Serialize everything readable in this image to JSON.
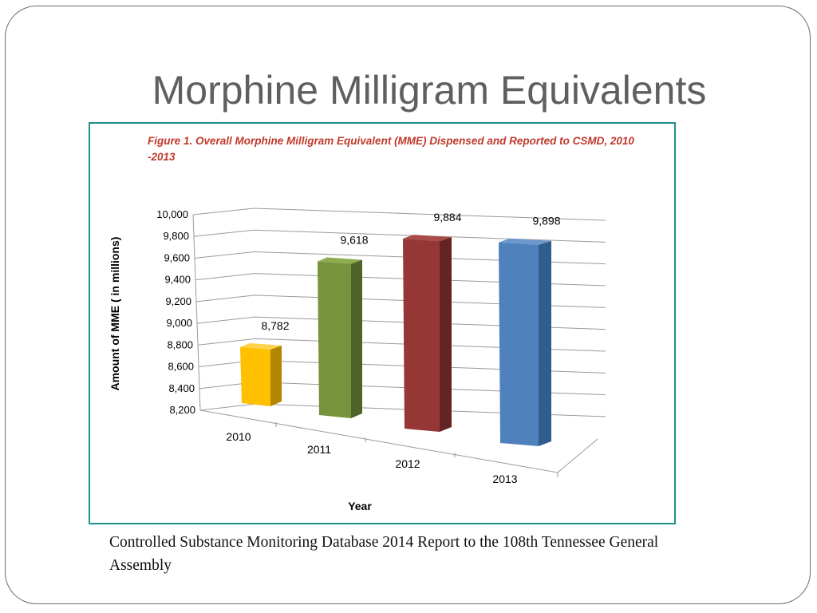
{
  "slide": {
    "title": "Morphine Milligram Equivalents",
    "caption": "Controlled Substance Monitoring Database 2014 Report to the 108th Tennessee General Assembly"
  },
  "chart_data": {
    "type": "bar",
    "title": "Figure 1. Overall Morphine Milligram Equivalent (MME) Dispensed  and Reported to CSMD, 2010 -2013",
    "xlabel": "Year",
    "ylabel": "Amount of MME ( in millions)",
    "categories": [
      "2010",
      "2011",
      "2012",
      "2013"
    ],
    "values": [
      8782,
      9618,
      9884,
      9898
    ],
    "value_labels": [
      "8,782",
      "9,618",
      "9,884",
      "9,898"
    ],
    "ylim": [
      8200,
      10000
    ],
    "yticks": [
      8200,
      8400,
      8600,
      8800,
      9000,
      9200,
      9400,
      9600,
      9800,
      10000
    ],
    "ytick_labels": [
      "8,200",
      "8,400",
      "8,600",
      "8,800",
      "9,000",
      "9,200",
      "9,400",
      "9,600",
      "9,800",
      "10,000"
    ],
    "grid": true,
    "style": "3d-column",
    "colors": [
      "#ffc000",
      "#77933c",
      "#953735",
      "#4f81bd"
    ],
    "side_colors": [
      "#b38600",
      "#4f6228",
      "#632523",
      "#2f5d8c"
    ],
    "top_colors": [
      "#ffd24d",
      "#8fad4f",
      "#a94b48",
      "#6d98cc"
    ]
  }
}
